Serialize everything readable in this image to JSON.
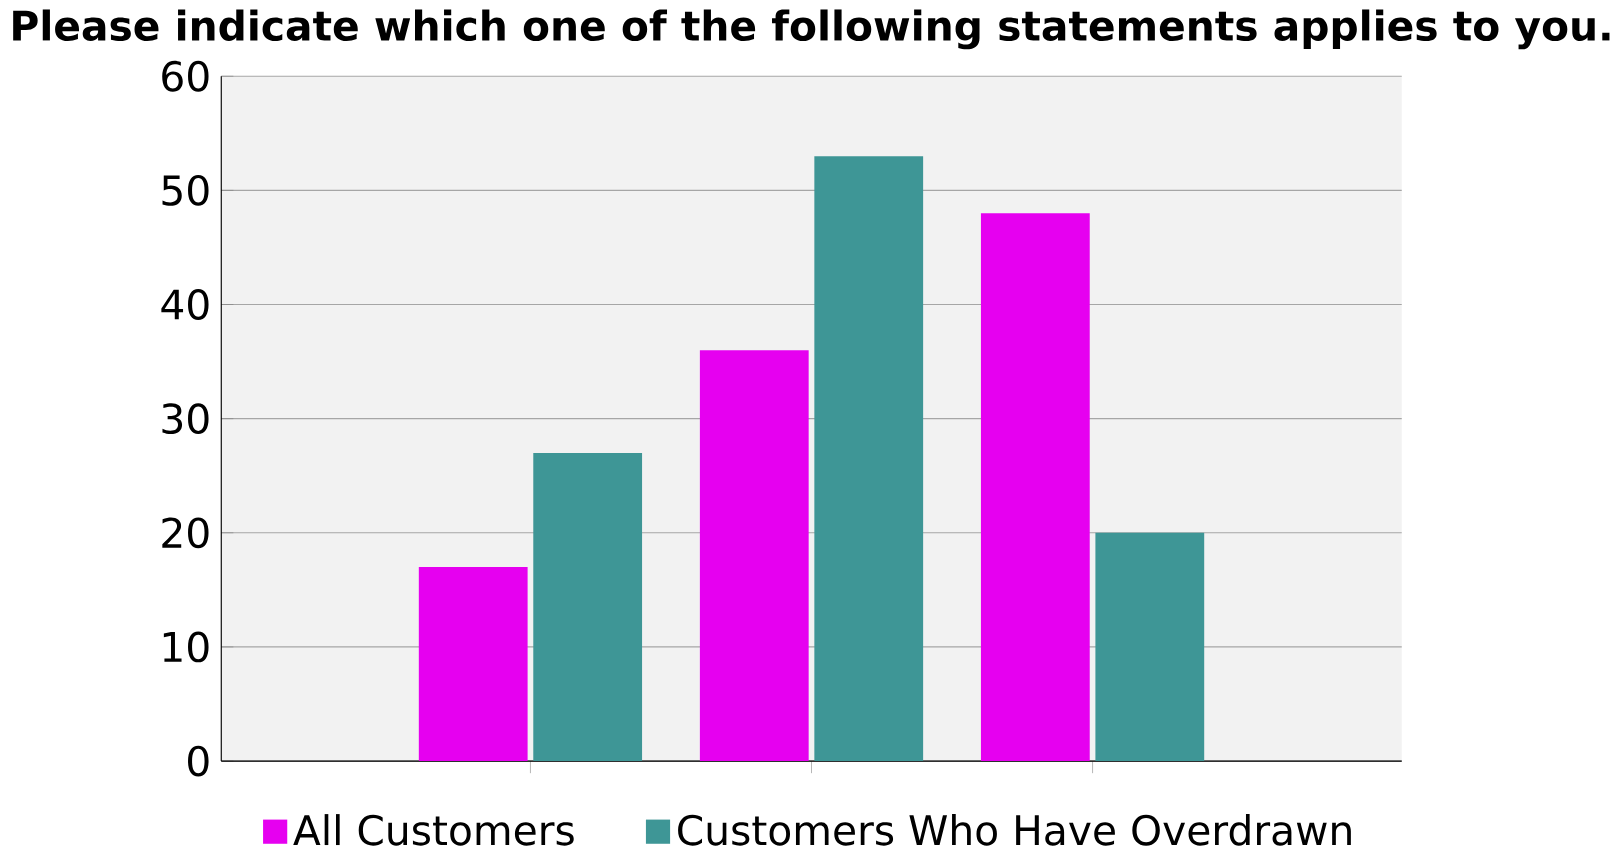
{
  "chart_data": {
    "type": "bar",
    "title": "Please indicate which one of the following statements applies to you.",
    "categories": [
      null,
      null,
      null
    ],
    "series": [
      {
        "name": "All Customers",
        "color": "#e600f0",
        "values": [
          17,
          36,
          48
        ]
      },
      {
        "name": "Customers Who Have Overdrawn",
        "color": "#3e9696",
        "values": [
          27,
          53,
          20
        ]
      }
    ],
    "ylim": [
      0,
      60
    ],
    "yticks": [
      0,
      10,
      20,
      30,
      40,
      50,
      60
    ],
    "grid": "y",
    "legend": "bottom"
  }
}
